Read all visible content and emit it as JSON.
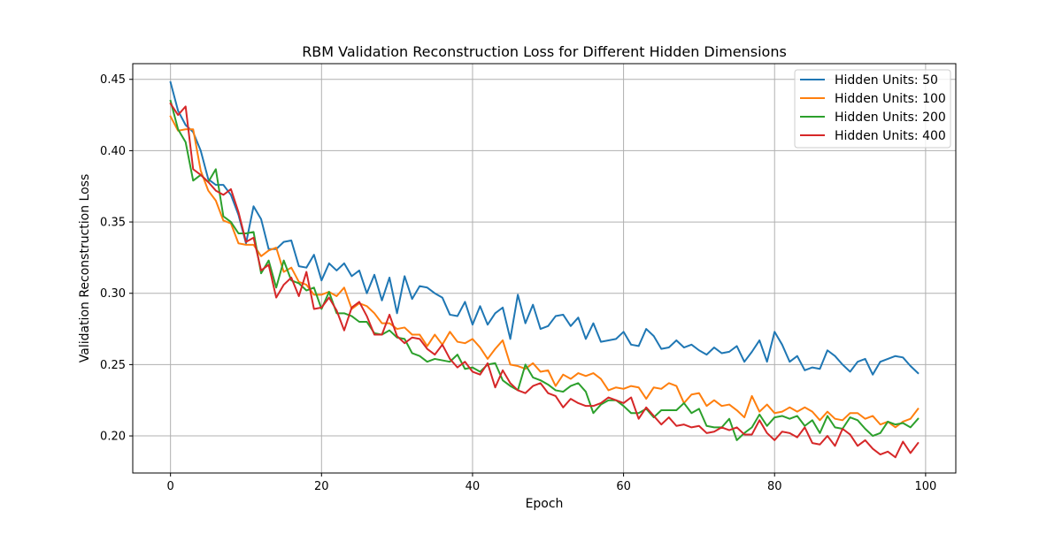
{
  "chart_data": {
    "type": "line",
    "title": "RBM Validation Reconstruction Loss for Different Hidden Dimensions",
    "xlabel": "Epoch",
    "ylabel": "Validation Reconstruction Loss",
    "xlim": [
      -5,
      104
    ],
    "ylim": [
      0.174,
      0.461
    ],
    "xticks": [
      0,
      20,
      40,
      60,
      80,
      100
    ],
    "yticks": [
      0.2,
      0.25,
      0.3,
      0.35,
      0.4,
      0.45
    ],
    "xtick_labels": [
      "0",
      "20",
      "40",
      "60",
      "80",
      "100"
    ],
    "ytick_labels": [
      "0.20",
      "0.25",
      "0.30",
      "0.35",
      "0.40",
      "0.45"
    ],
    "grid": true,
    "legend_position": "top-right",
    "series": [
      {
        "name": "Hidden Units: 50",
        "color": "#1f77b4",
        "x": [
          0,
          1,
          2,
          3,
          4,
          5,
          6,
          7,
          8,
          9,
          10,
          11,
          12,
          13,
          14,
          15,
          16,
          17,
          18,
          19,
          20,
          21,
          22,
          23,
          24,
          25,
          26,
          27,
          28,
          29,
          30,
          31,
          32,
          33,
          34,
          35,
          36,
          37,
          38,
          39,
          40,
          41,
          42,
          43,
          44,
          45,
          46,
          47,
          48,
          49,
          50,
          51,
          52,
          53,
          54,
          55,
          56,
          57,
          58,
          59,
          60,
          61,
          62,
          63,
          64,
          65,
          66,
          67,
          68,
          69,
          70,
          71,
          72,
          73,
          74,
          75,
          76,
          77,
          78,
          79,
          80,
          81,
          82,
          83,
          84,
          85,
          86,
          87,
          88,
          89,
          90,
          91,
          92,
          93,
          94,
          95,
          96,
          97,
          98,
          99
        ],
        "y": [
          0.448,
          0.428,
          0.418,
          0.413,
          0.4,
          0.38,
          0.376,
          0.376,
          0.369,
          0.355,
          0.335,
          0.361,
          0.352,
          0.331,
          0.331,
          0.336,
          0.337,
          0.319,
          0.318,
          0.327,
          0.309,
          0.321,
          0.316,
          0.321,
          0.312,
          0.316,
          0.3,
          0.313,
          0.295,
          0.311,
          0.286,
          0.312,
          0.296,
          0.305,
          0.304,
          0.3,
          0.297,
          0.285,
          0.284,
          0.294,
          0.278,
          0.291,
          0.278,
          0.286,
          0.29,
          0.268,
          0.299,
          0.279,
          0.292,
          0.275,
          0.277,
          0.284,
          0.285,
          0.277,
          0.283,
          0.268,
          0.279,
          0.266,
          0.267,
          0.268,
          0.273,
          0.264,
          0.263,
          0.275,
          0.27,
          0.261,
          0.262,
          0.267,
          0.262,
          0.264,
          0.26,
          0.257,
          0.262,
          0.258,
          0.259,
          0.263,
          0.252,
          0.259,
          0.267,
          0.252,
          0.273,
          0.264,
          0.252,
          0.256,
          0.246,
          0.248,
          0.247,
          0.26,
          0.256,
          0.25,
          0.245,
          0.252,
          0.254,
          0.243,
          0.252,
          0.254,
          0.256,
          0.255,
          0.249,
          0.244
        ]
      },
      {
        "name": "Hidden Units: 100",
        "color": "#ff7f0e",
        "x": [
          0,
          1,
          2,
          3,
          4,
          5,
          6,
          7,
          8,
          9,
          10,
          11,
          12,
          13,
          14,
          15,
          16,
          17,
          18,
          19,
          20,
          21,
          22,
          23,
          24,
          25,
          26,
          27,
          28,
          29,
          30,
          31,
          32,
          33,
          34,
          35,
          36,
          37,
          38,
          39,
          40,
          41,
          42,
          43,
          44,
          45,
          46,
          47,
          48,
          49,
          50,
          51,
          52,
          53,
          54,
          55,
          56,
          57,
          58,
          59,
          60,
          61,
          62,
          63,
          64,
          65,
          66,
          67,
          68,
          69,
          70,
          71,
          72,
          73,
          74,
          75,
          76,
          77,
          78,
          79,
          80,
          81,
          82,
          83,
          84,
          85,
          86,
          87,
          88,
          89,
          90,
          91,
          92,
          93,
          94,
          95,
          96,
          97,
          98,
          99
        ],
        "y": [
          0.424,
          0.414,
          0.415,
          0.415,
          0.386,
          0.372,
          0.365,
          0.351,
          0.349,
          0.335,
          0.334,
          0.334,
          0.326,
          0.33,
          0.332,
          0.315,
          0.318,
          0.308,
          0.306,
          0.299,
          0.299,
          0.301,
          0.298,
          0.304,
          0.289,
          0.293,
          0.291,
          0.286,
          0.279,
          0.279,
          0.275,
          0.276,
          0.271,
          0.271,
          0.263,
          0.271,
          0.264,
          0.273,
          0.266,
          0.265,
          0.268,
          0.262,
          0.254,
          0.261,
          0.267,
          0.25,
          0.249,
          0.247,
          0.251,
          0.245,
          0.246,
          0.235,
          0.243,
          0.24,
          0.244,
          0.242,
          0.244,
          0.24,
          0.232,
          0.234,
          0.233,
          0.235,
          0.234,
          0.226,
          0.234,
          0.233,
          0.237,
          0.235,
          0.223,
          0.229,
          0.23,
          0.221,
          0.225,
          0.221,
          0.222,
          0.218,
          0.213,
          0.228,
          0.217,
          0.222,
          0.216,
          0.217,
          0.22,
          0.217,
          0.22,
          0.217,
          0.211,
          0.217,
          0.212,
          0.211,
          0.216,
          0.216,
          0.212,
          0.214,
          0.208,
          0.21,
          0.206,
          0.21,
          0.212,
          0.219
        ]
      },
      {
        "name": "Hidden Units: 200",
        "color": "#2ca02c",
        "x": [
          0,
          1,
          2,
          3,
          4,
          5,
          6,
          7,
          8,
          9,
          10,
          11,
          12,
          13,
          14,
          15,
          16,
          17,
          18,
          19,
          20,
          21,
          22,
          23,
          24,
          25,
          26,
          27,
          28,
          29,
          30,
          31,
          32,
          33,
          34,
          35,
          36,
          37,
          38,
          39,
          40,
          41,
          42,
          43,
          44,
          45,
          46,
          47,
          48,
          49,
          50,
          51,
          52,
          53,
          54,
          55,
          56,
          57,
          58,
          59,
          60,
          61,
          62,
          63,
          64,
          65,
          66,
          67,
          68,
          69,
          70,
          71,
          72,
          73,
          74,
          75,
          76,
          77,
          78,
          79,
          80,
          81,
          82,
          83,
          84,
          85,
          86,
          87,
          88,
          89,
          90,
          91,
          92,
          93,
          94,
          95,
          96,
          97,
          98,
          99
        ],
        "y": [
          0.435,
          0.415,
          0.406,
          0.379,
          0.383,
          0.378,
          0.387,
          0.354,
          0.35,
          0.342,
          0.342,
          0.343,
          0.314,
          0.323,
          0.304,
          0.323,
          0.309,
          0.307,
          0.302,
          0.304,
          0.289,
          0.301,
          0.286,
          0.286,
          0.284,
          0.28,
          0.28,
          0.272,
          0.271,
          0.274,
          0.269,
          0.268,
          0.258,
          0.256,
          0.252,
          0.254,
          0.253,
          0.252,
          0.257,
          0.247,
          0.248,
          0.245,
          0.25,
          0.251,
          0.239,
          0.235,
          0.232,
          0.25,
          0.241,
          0.239,
          0.236,
          0.232,
          0.231,
          0.235,
          0.237,
          0.231,
          0.216,
          0.222,
          0.225,
          0.225,
          0.221,
          0.216,
          0.216,
          0.219,
          0.213,
          0.218,
          0.218,
          0.218,
          0.223,
          0.216,
          0.219,
          0.207,
          0.206,
          0.206,
          0.212,
          0.197,
          0.202,
          0.206,
          0.215,
          0.207,
          0.213,
          0.214,
          0.212,
          0.214,
          0.207,
          0.211,
          0.202,
          0.214,
          0.206,
          0.205,
          0.213,
          0.211,
          0.205,
          0.2,
          0.202,
          0.21,
          0.208,
          0.209,
          0.206,
          0.212
        ]
      },
      {
        "name": "Hidden Units: 400",
        "color": "#d62728",
        "x": [
          0,
          1,
          2,
          3,
          4,
          5,
          6,
          7,
          8,
          9,
          10,
          11,
          12,
          13,
          14,
          15,
          16,
          17,
          18,
          19,
          20,
          21,
          22,
          23,
          24,
          25,
          26,
          27,
          28,
          29,
          30,
          31,
          32,
          33,
          34,
          35,
          36,
          37,
          38,
          39,
          40,
          41,
          42,
          43,
          44,
          45,
          46,
          47,
          48,
          49,
          50,
          51,
          52,
          53,
          54,
          55,
          56,
          57,
          58,
          59,
          60,
          61,
          62,
          63,
          64,
          65,
          66,
          67,
          68,
          69,
          70,
          71,
          72,
          73,
          74,
          75,
          76,
          77,
          78,
          79,
          80,
          81,
          82,
          83,
          84,
          85,
          86,
          87,
          88,
          89,
          90,
          91,
          92,
          93,
          94,
          95,
          96,
          97,
          98,
          99
        ],
        "y": [
          0.433,
          0.425,
          0.431,
          0.387,
          0.383,
          0.378,
          0.372,
          0.369,
          0.373,
          0.357,
          0.336,
          0.339,
          0.316,
          0.32,
          0.297,
          0.306,
          0.311,
          0.298,
          0.315,
          0.289,
          0.29,
          0.297,
          0.288,
          0.274,
          0.29,
          0.294,
          0.284,
          0.271,
          0.271,
          0.285,
          0.27,
          0.265,
          0.269,
          0.268,
          0.261,
          0.257,
          0.264,
          0.254,
          0.248,
          0.252,
          0.245,
          0.243,
          0.251,
          0.234,
          0.246,
          0.237,
          0.232,
          0.23,
          0.235,
          0.237,
          0.23,
          0.228,
          0.22,
          0.226,
          0.223,
          0.221,
          0.221,
          0.223,
          0.227,
          0.225,
          0.223,
          0.227,
          0.212,
          0.22,
          0.214,
          0.208,
          0.213,
          0.207,
          0.208,
          0.206,
          0.207,
          0.202,
          0.203,
          0.206,
          0.204,
          0.206,
          0.201,
          0.201,
          0.211,
          0.202,
          0.197,
          0.203,
          0.202,
          0.199,
          0.206,
          0.195,
          0.194,
          0.2,
          0.193,
          0.205,
          0.201,
          0.193,
          0.197,
          0.191,
          0.187,
          0.189,
          0.185,
          0.196,
          0.188,
          0.195
        ]
      }
    ]
  }
}
